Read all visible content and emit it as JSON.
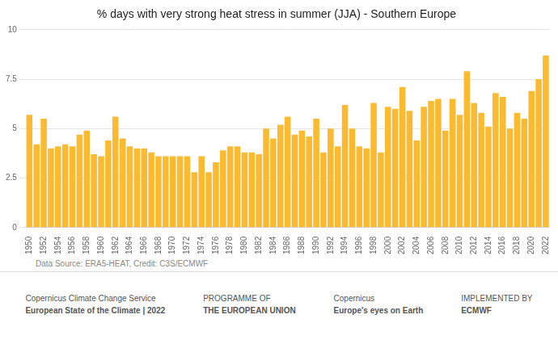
{
  "chart_data": {
    "type": "bar",
    "title": "% days with very strong heat stress in summer (JJA) - Southern Europe",
    "categories": [
      "1950",
      null,
      "1952",
      null,
      "1954",
      null,
      "1956",
      null,
      "1958",
      null,
      "1960",
      null,
      "1962",
      null,
      "1964",
      null,
      "1966",
      null,
      "1968",
      null,
      "1970",
      null,
      "1972",
      null,
      "1974",
      null,
      "1976",
      null,
      "1978",
      null,
      "1980",
      null,
      "1982",
      null,
      "1984",
      null,
      "1986",
      null,
      "1988",
      null,
      "1990",
      null,
      "1992",
      null,
      "1994",
      null,
      "1996",
      null,
      "1998",
      null,
      "2000",
      null,
      "2002",
      null,
      "2004",
      null,
      "2006",
      null,
      "2008",
      null,
      "2010",
      null,
      "2012",
      null,
      "2014",
      null,
      "2016",
      null,
      "2018",
      null,
      "2020",
      null,
      "2022"
    ],
    "values": [
      5.7,
      4.2,
      5.5,
      4.0,
      4.1,
      4.2,
      4.1,
      4.7,
      4.9,
      3.7,
      3.6,
      4.4,
      5.6,
      4.5,
      4.1,
      4.0,
      4.0,
      3.8,
      3.6,
      3.6,
      3.6,
      3.6,
      3.6,
      2.8,
      3.6,
      2.8,
      3.3,
      3.9,
      4.1,
      4.1,
      3.8,
      3.8,
      3.7,
      5.0,
      4.5,
      5.2,
      5.6,
      4.7,
      4.9,
      4.6,
      5.5,
      3.8,
      5.0,
      4.1,
      6.2,
      5.0,
      4.1,
      4.0,
      6.3,
      3.8,
      6.1,
      6.0,
      7.1,
      5.9,
      4.4,
      6.1,
      6.4,
      6.5,
      4.9,
      6.5,
      5.7,
      7.9,
      6.3,
      5.8,
      5.1,
      6.8,
      6.6,
      5.0,
      5.8,
      5.5,
      6.9,
      7.5,
      8.7
    ],
    "color": "#FBBA30",
    "ylim": [
      0,
      10
    ],
    "yticks": [
      0,
      2.5,
      5,
      7.5,
      10
    ],
    "grid": true,
    "annotations": [
      "Data Source: ERA5-HEAT, Credit: C3S/ECMWF",
      "Copernicus Climate Change Service",
      "European State of the Climate | 2022",
      "PROGRAMME OF",
      "THE EUROPEAN UNION",
      "Copernicus",
      "Europe's eyes on Earth",
      "IMPLEMENTED BY",
      "ECMWF"
    ]
  }
}
